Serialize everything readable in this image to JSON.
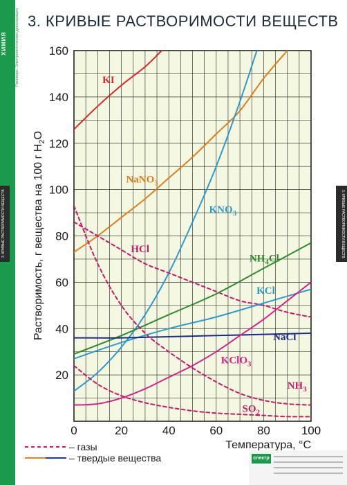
{
  "poster": {
    "title": "3. КРИВЫЕ  РАСТВОРИМОСТИ  ВЕЩЕСТВ",
    "subject": "ХИМИЯ",
    "subtitle": "Растворы. Электролитическая диссоциация",
    "side_tab_left": "3. КРИВЫЕ РАСТВОРИМОСТИ ВЕЩЕСТВ",
    "side_tab_right": "3. КРИВЫЕ РАСТВОРИМОСТИ ВЕЩЕСТВ",
    "publisher_logo": "спектр",
    "accent_color": "#1a9a4a"
  },
  "chart_data": {
    "type": "line",
    "xlabel": "Температура, °С",
    "ylabel": "Растворимость, г вещества на 100 г H2O",
    "xlim": [
      0,
      100
    ],
    "ylim": [
      0,
      160
    ],
    "x_ticks": [
      "0",
      "20",
      "40",
      "60",
      "80",
      "100"
    ],
    "y_ticks": [
      "20",
      "40",
      "60",
      "80",
      "100",
      "120",
      "140",
      "160"
    ],
    "grid": true,
    "background_color": "#f4f8e0",
    "legend": [
      {
        "label": "– газы",
        "style": "dashed",
        "color": "#c8186c"
      },
      {
        "label": "– твердые вещества",
        "style": "solid",
        "colors": [
          "#e8841c",
          "#1a3ab0"
        ]
      }
    ],
    "series": [
      {
        "name": "KI",
        "color": "#d8262e",
        "style": "solid",
        "points": [
          [
            0,
            126
          ],
          [
            10,
            136
          ],
          [
            20,
            145
          ],
          [
            30,
            153
          ],
          [
            37,
            160
          ]
        ]
      },
      {
        "name": "NaNO3",
        "color": "#e07c1a",
        "style": "solid",
        "points": [
          [
            0,
            73
          ],
          [
            10,
            80
          ],
          [
            20,
            88
          ],
          [
            30,
            96
          ],
          [
            40,
            105
          ],
          [
            50,
            114
          ],
          [
            60,
            124
          ],
          [
            70,
            134
          ],
          [
            80,
            148
          ],
          [
            90,
            160
          ]
        ]
      },
      {
        "name": "KNO3",
        "color": "#2a9ad0",
        "style": "solid",
        "points": [
          [
            0,
            13
          ],
          [
            10,
            21
          ],
          [
            20,
            32
          ],
          [
            30,
            46
          ],
          [
            40,
            64
          ],
          [
            50,
            86
          ],
          [
            60,
            110
          ],
          [
            70,
            138
          ],
          [
            80,
            169
          ]
        ]
      },
      {
        "name": "HCl",
        "color": "#c8186c",
        "style": "dashed",
        "points": [
          [
            0,
            86
          ],
          [
            10,
            80
          ],
          [
            20,
            74
          ],
          [
            30,
            68
          ],
          [
            40,
            64
          ],
          [
            50,
            60
          ],
          [
            60,
            56
          ],
          [
            70,
            52
          ],
          [
            80,
            50
          ],
          [
            90,
            47
          ],
          [
            100,
            45
          ]
        ]
      },
      {
        "name": "NH4Cl",
        "color": "#2e8a2c",
        "style": "solid",
        "points": [
          [
            0,
            29
          ],
          [
            20,
            37
          ],
          [
            40,
            46
          ],
          [
            60,
            55
          ],
          [
            80,
            66
          ],
          [
            100,
            77
          ]
        ]
      },
      {
        "name": "KCl",
        "color": "#2a9ad0",
        "style": "solid",
        "points": [
          [
            0,
            27
          ],
          [
            20,
            34
          ],
          [
            40,
            40
          ],
          [
            60,
            45
          ],
          [
            80,
            51
          ],
          [
            100,
            57
          ]
        ]
      },
      {
        "name": "NaCl",
        "color": "#1a2a8a",
        "style": "solid",
        "points": [
          [
            0,
            36
          ],
          [
            20,
            36
          ],
          [
            40,
            36.5
          ],
          [
            60,
            37
          ],
          [
            80,
            37.5
          ],
          [
            100,
            38
          ]
        ]
      },
      {
        "name": "KClO3",
        "color": "#d8208a",
        "style": "solid",
        "points": [
          [
            0,
            7
          ],
          [
            10,
            7.5
          ],
          [
            20,
            10
          ],
          [
            30,
            14
          ],
          [
            40,
            19
          ],
          [
            50,
            24
          ],
          [
            60,
            30
          ],
          [
            70,
            37
          ],
          [
            80,
            44
          ],
          [
            90,
            52
          ],
          [
            100,
            60
          ]
        ]
      },
      {
        "name": "NH3",
        "color": "#c8186c",
        "style": "dashed",
        "points": [
          [
            0,
            93
          ],
          [
            10,
            68
          ],
          [
            20,
            50
          ],
          [
            30,
            38
          ],
          [
            40,
            30
          ],
          [
            50,
            23
          ],
          [
            60,
            17
          ],
          [
            70,
            12
          ],
          [
            80,
            9
          ],
          [
            90,
            7.5
          ],
          [
            100,
            7
          ]
        ]
      },
      {
        "name": "SO2",
        "color": "#c8186c",
        "style": "dashed",
        "points": [
          [
            0,
            24
          ],
          [
            10,
            16
          ],
          [
            20,
            11
          ],
          [
            30,
            8
          ],
          [
            40,
            6
          ],
          [
            50,
            4.5
          ],
          [
            60,
            3.5
          ],
          [
            70,
            3
          ],
          [
            80,
            2.5
          ],
          [
            90,
            2
          ],
          [
            100,
            2
          ]
        ]
      }
    ],
    "series_labels": [
      {
        "series": "KI",
        "base": "KI",
        "sub": "",
        "tail": "",
        "color": "#d8262e",
        "at": [
          12,
          146
        ]
      },
      {
        "series": "NaNO3",
        "base": "NaNO",
        "sub": "3",
        "tail": "",
        "color": "#e07c1a",
        "at": [
          22,
          103
        ]
      },
      {
        "series": "KNO3",
        "base": "KNO",
        "sub": "3",
        "tail": "",
        "color": "#2a9ad0",
        "at": [
          57,
          90
        ]
      },
      {
        "series": "HCl",
        "base": "HCl",
        "sub": "",
        "tail": "",
        "color": "#c8186c",
        "at": [
          24,
          73
        ]
      },
      {
        "series": "NH4Cl",
        "base": "NH",
        "sub": "4",
        "tail": "Cl",
        "color": "#2e8a2c",
        "at": [
          74,
          69
        ]
      },
      {
        "series": "KCl",
        "base": "KCl",
        "sub": "",
        "tail": "",
        "color": "#2a9ad0",
        "at": [
          77,
          55
        ]
      },
      {
        "series": "NaCl",
        "base": "NaCl",
        "sub": "",
        "tail": "",
        "color": "#1a2a8a",
        "at": [
          84,
          35
        ]
      },
      {
        "series": "KClO3",
        "base": "KClO",
        "sub": "3",
        "tail": "",
        "color": "#d8208a",
        "at": [
          62,
          25
        ]
      },
      {
        "series": "NH3",
        "base": "NH",
        "sub": "3",
        "tail": "",
        "color": "#c8186c",
        "at": [
          90,
          14
        ]
      },
      {
        "series": "SO2",
        "base": "SO",
        "sub": "2",
        "tail": "",
        "color": "#c8186c",
        "at": [
          71,
          4
        ]
      }
    ]
  }
}
